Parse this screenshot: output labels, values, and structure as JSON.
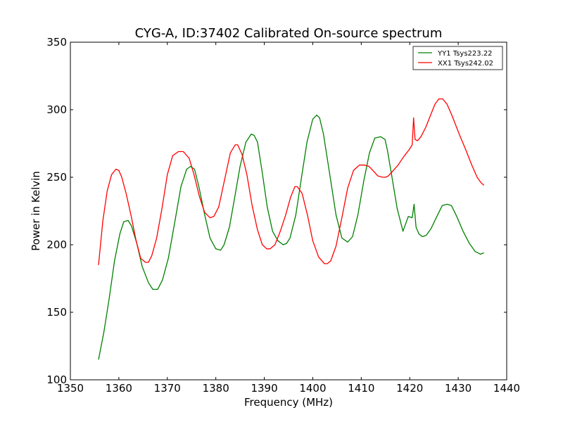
{
  "chart_data": {
    "type": "line",
    "title": "CYG-A, ID:37402 Calibrated On-source spectrum",
    "xlabel": "Frequency (MHz)",
    "ylabel": "Power in Kelvin",
    "xlim": [
      1350,
      1440
    ],
    "ylim": [
      100,
      350
    ],
    "xticks": [
      1350,
      1360,
      1370,
      1380,
      1390,
      1400,
      1410,
      1420,
      1430,
      1440
    ],
    "yticks": [
      100,
      150,
      200,
      250,
      300,
      350
    ],
    "grid": false,
    "legend_position": "top-right",
    "series": [
      {
        "name": "YY1 Tsys223.22",
        "color": "#008000",
        "x": [
          1355.8,
          1356.9,
          1358.0,
          1359.1,
          1360.2,
          1361.0,
          1361.9,
          1362.6,
          1363.7,
          1364.8,
          1366.1,
          1367.0,
          1368.0,
          1369.0,
          1370.2,
          1371.5,
          1372.8,
          1374.0,
          1374.8,
          1375.6,
          1376.5,
          1377.6,
          1378.8,
          1380.0,
          1381.0,
          1381.7,
          1382.8,
          1383.9,
          1385.0,
          1386.2,
          1387.3,
          1387.9,
          1388.6,
          1389.6,
          1390.6,
          1391.7,
          1392.8,
          1393.9,
          1394.6,
          1395.3,
          1396.5,
          1397.6,
          1398.8,
          1400.0,
          1400.8,
          1401.4,
          1402.2,
          1403.5,
          1404.8,
          1406.0,
          1407.2,
          1408.2,
          1409.3,
          1410.5,
          1411.7,
          1412.8,
          1414.0,
          1414.9,
          1415.4,
          1416.3,
          1417.4,
          1418.6,
          1419.7,
          1420.5,
          1420.9,
          1421.3,
          1421.9,
          1422.6,
          1423.4,
          1424.4,
          1425.6,
          1426.7,
          1427.7,
          1428.6,
          1429.7,
          1431.0,
          1432.3,
          1433.5,
          1434.6,
          1435.3
        ],
        "values": [
          115,
          135,
          160,
          188,
          208,
          217,
          218,
          214,
          201,
          184,
          172,
          167,
          167,
          174,
          190,
          216,
          243,
          256,
          258,
          256,
          243,
          224,
          205,
          197,
          196,
          200,
          213,
          235,
          258,
          276,
          282,
          281,
          276,
          253,
          228,
          210,
          203,
          200,
          201,
          205,
          222,
          248,
          276,
          293,
          296,
          294,
          282,
          252,
          222,
          205,
          202,
          206,
          222,
          247,
          268,
          279,
          280,
          278,
          270,
          251,
          227,
          210,
          221,
          220,
          230,
          213,
          208,
          206,
          207,
          212,
          221,
          229,
          230,
          229,
          221,
          210,
          201,
          195,
          193,
          194
        ]
      },
      {
        "name": "XX1 Tsys242.02",
        "color": "#ff0000",
        "x": [
          1355.8,
          1356.7,
          1357.6,
          1358.5,
          1359.4,
          1360.0,
          1360.6,
          1361.5,
          1362.5,
          1363.5,
          1364.5,
          1365.5,
          1366.1,
          1366.8,
          1367.8,
          1368.9,
          1370.0,
          1371.1,
          1372.3,
          1373.3,
          1374.5,
          1375.5,
          1376.6,
          1377.7,
          1378.8,
          1379.6,
          1380.6,
          1381.8,
          1383.0,
          1384.0,
          1384.5,
          1385.4,
          1386.4,
          1387.5,
          1388.6,
          1389.6,
          1390.5,
          1391.2,
          1392.2,
          1393.3,
          1394.4,
          1395.4,
          1396.3,
          1396.8,
          1397.8,
          1398.9,
          1400.0,
          1401.2,
          1402.4,
          1403.0,
          1403.7,
          1404.8,
          1406.0,
          1407.2,
          1408.4,
          1409.6,
          1410.7,
          1411.6,
          1412.4,
          1413.4,
          1414.4,
          1415.0,
          1415.6,
          1416.6,
          1417.6,
          1418.7,
          1419.8,
          1420.5,
          1420.8,
          1421.1,
          1421.6,
          1422.3,
          1423.3,
          1424.3,
          1425.2,
          1426.0,
          1426.8,
          1427.7,
          1428.8,
          1430.2,
          1431.6,
          1432.8,
          1433.9,
          1434.7,
          1435.3
        ],
        "values": [
          185,
          218,
          240,
          252,
          256,
          255,
          250,
          238,
          222,
          204,
          190,
          187,
          187,
          192,
          205,
          227,
          252,
          266,
          269,
          269,
          264,
          252,
          236,
          224,
          220,
          221,
          228,
          248,
          268,
          274,
          274,
          267,
          252,
          229,
          211,
          200,
          197,
          197,
          200,
          210,
          222,
          235,
          243,
          243,
          238,
          222,
          203,
          191,
          186,
          186,
          188,
          199,
          220,
          242,
          255,
          259,
          259,
          258,
          255,
          251,
          250,
          250,
          251,
          255,
          259,
          265,
          270,
          274,
          294,
          278,
          277,
          280,
          287,
          296,
          304,
          308,
          308,
          304,
          295,
          282,
          270,
          259,
          250,
          246,
          244
        ]
      }
    ]
  }
}
